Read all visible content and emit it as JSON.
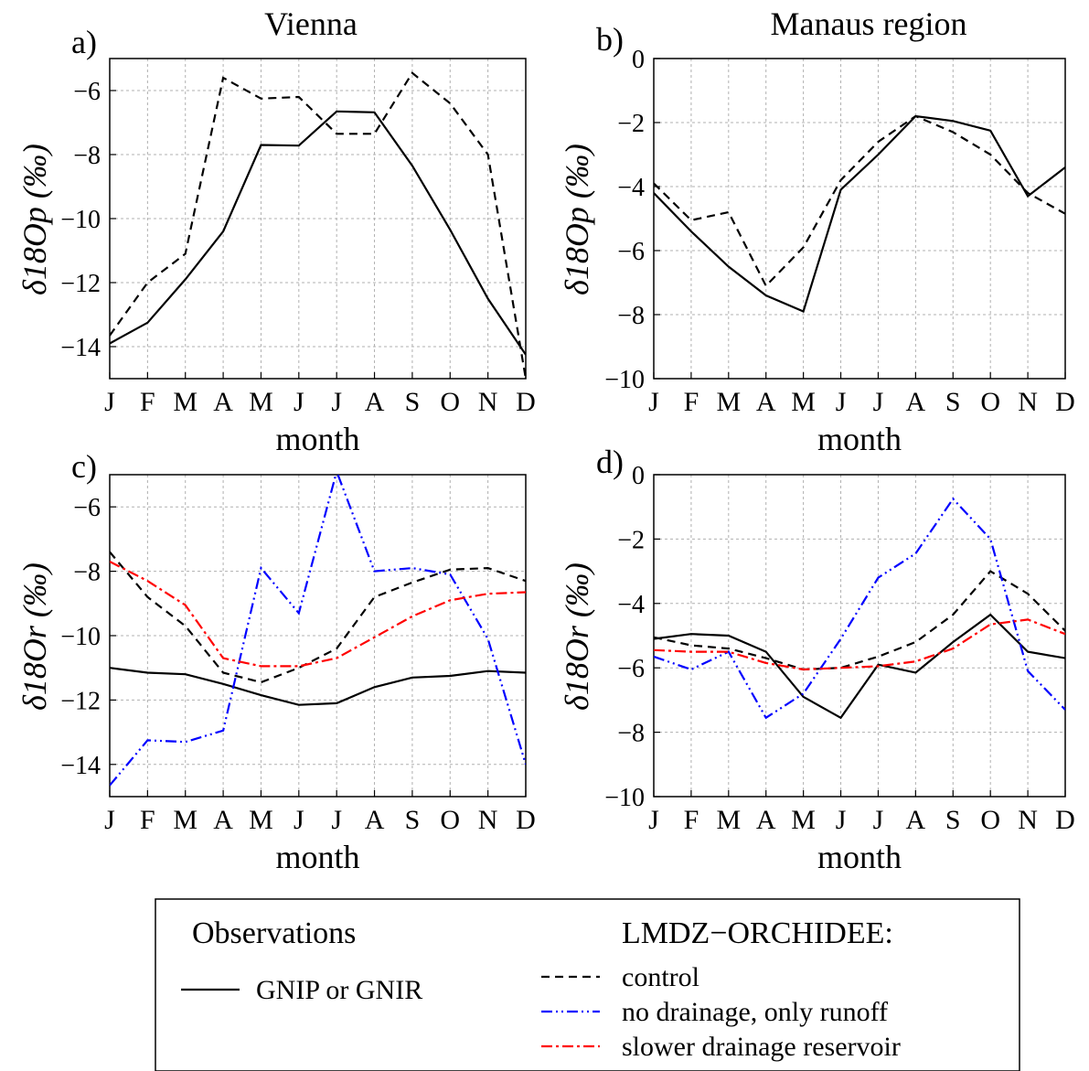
{
  "chart_data": [
    {
      "panel_label": "a)",
      "title": "Vienna",
      "type": "line",
      "xlabel": "month",
      "ylabel": "δ18Op (‰)",
      "categories": [
        "J",
        "F",
        "M",
        "A",
        "M",
        "J",
        "J",
        "A",
        "S",
        "O",
        "N",
        "D"
      ],
      "ylim": [
        -15,
        -5
      ],
      "yticks": [
        -14,
        -12,
        -10,
        -8,
        -6
      ],
      "grid": true,
      "series": [
        {
          "name": "GNIP or GNIR",
          "style": "solid",
          "color": "#000000",
          "values": [
            -13.9,
            -13.25,
            -11.9,
            -10.4,
            -7.7,
            -7.72,
            -6.65,
            -6.68,
            -8.35,
            -10.35,
            -12.5,
            -14.25
          ]
        },
        {
          "name": "control",
          "style": "dashed",
          "color": "#000000",
          "values": [
            -13.65,
            -12.0,
            -11.1,
            -5.6,
            -6.25,
            -6.2,
            -7.35,
            -7.35,
            -5.45,
            -6.4,
            -8.0,
            -15.0
          ]
        }
      ]
    },
    {
      "panel_label": "b)",
      "title": "Manaus region",
      "type": "line",
      "xlabel": "month",
      "ylabel": "δ18Op (‰)",
      "categories": [
        "J",
        "F",
        "M",
        "A",
        "M",
        "J",
        "J",
        "A",
        "S",
        "O",
        "N",
        "D"
      ],
      "ylim": [
        -10,
        0
      ],
      "yticks": [
        -10,
        -8,
        -6,
        -4,
        -2,
        0
      ],
      "grid": true,
      "series": [
        {
          "name": "GNIP or GNIR",
          "style": "solid",
          "color": "#000000",
          "values": [
            -4.2,
            -5.4,
            -6.5,
            -7.4,
            -7.9,
            -4.1,
            -3.0,
            -1.8,
            -1.95,
            -2.25,
            -4.3,
            -3.4
          ]
        },
        {
          "name": "control",
          "style": "dashed",
          "color": "#000000",
          "values": [
            -3.9,
            -5.05,
            -4.8,
            -7.1,
            -5.9,
            -3.8,
            -2.6,
            -1.8,
            -2.3,
            -3.0,
            -4.2,
            -4.85
          ]
        }
      ]
    },
    {
      "panel_label": "c)",
      "title": "",
      "type": "line",
      "xlabel": "month",
      "ylabel": "δ18Or (‰)",
      "categories": [
        "J",
        "F",
        "M",
        "A",
        "M",
        "J",
        "J",
        "A",
        "S",
        "O",
        "N",
        "D"
      ],
      "ylim": [
        -15,
        -5
      ],
      "yticks": [
        -14,
        -12,
        -10,
        -8,
        -6
      ],
      "grid": true,
      "series": [
        {
          "name": "GNIP or GNIR",
          "style": "solid",
          "color": "#000000",
          "values": [
            -11.0,
            -11.15,
            -11.2,
            -11.5,
            -11.85,
            -12.15,
            -12.1,
            -11.6,
            -11.3,
            -11.25,
            -11.1,
            -11.15
          ]
        },
        {
          "name": "control",
          "style": "dashed",
          "color": "#000000",
          "values": [
            -7.4,
            -8.8,
            -9.7,
            -11.15,
            -11.45,
            -11.0,
            -10.4,
            -8.8,
            -8.35,
            -7.95,
            -7.9,
            -8.3
          ]
        },
        {
          "name": "no drainage, only runoff",
          "style": "dashdotdot",
          "color": "#0000ff",
          "values": [
            -14.65,
            -13.25,
            -13.3,
            -12.95,
            -7.9,
            -9.3,
            -4.9,
            -8.0,
            -7.9,
            -8.1,
            -10.1,
            -14.0
          ]
        },
        {
          "name": "slower drainage reservoir",
          "style": "dashdot",
          "color": "#ff0000",
          "values": [
            -7.7,
            -8.3,
            -9.05,
            -10.7,
            -10.95,
            -10.95,
            -10.7,
            -10.05,
            -9.4,
            -8.9,
            -8.7,
            -8.65
          ]
        }
      ]
    },
    {
      "panel_label": "d)",
      "title": "",
      "type": "line",
      "xlabel": "month",
      "ylabel": "δ18Or (‰)",
      "categories": [
        "J",
        "F",
        "M",
        "A",
        "M",
        "J",
        "J",
        "A",
        "S",
        "O",
        "N",
        "D"
      ],
      "ylim": [
        -10,
        0
      ],
      "yticks": [
        -10,
        -8,
        -6,
        -4,
        -2,
        0
      ],
      "grid": true,
      "series": [
        {
          "name": "GNIP or GNIR",
          "style": "solid",
          "color": "#000000",
          "values": [
            -5.1,
            -4.95,
            -5.0,
            -5.5,
            -6.9,
            -7.55,
            -5.9,
            -6.15,
            -5.2,
            -4.35,
            -5.5,
            -5.7
          ]
        },
        {
          "name": "control",
          "style": "dashed",
          "color": "#000000",
          "values": [
            -5.05,
            -5.3,
            -5.4,
            -5.7,
            -6.05,
            -6.0,
            -5.65,
            -5.2,
            -4.35,
            -3.0,
            -3.7,
            -4.85
          ]
        },
        {
          "name": "no drainage, only runoff",
          "style": "dashdotdot",
          "color": "#0000ff",
          "values": [
            -5.65,
            -6.05,
            -5.5,
            -7.55,
            -6.8,
            -5.1,
            -3.2,
            -2.45,
            -0.75,
            -2.0,
            -6.1,
            -7.3
          ]
        },
        {
          "name": "slower drainage reservoir",
          "style": "dashdot",
          "color": "#ff0000",
          "values": [
            -5.45,
            -5.5,
            -5.5,
            -5.85,
            -6.05,
            -6.0,
            -5.95,
            -5.8,
            -5.4,
            -4.65,
            -4.5,
            -4.95
          ]
        }
      ]
    }
  ],
  "legend": {
    "observations_heading": "Observations",
    "model_heading": "LMDZ−ORCHIDEE:",
    "items": [
      {
        "label": "GNIP or GNIR",
        "style": "solid",
        "color": "#000000"
      },
      {
        "label": "control",
        "style": "dashed",
        "color": "#000000"
      },
      {
        "label": "no drainage, only runoff",
        "style": "dashdotdot",
        "color": "#0000ff"
      },
      {
        "label": "slower drainage reservoir",
        "style": "dashdot",
        "color": "#ff0000"
      }
    ]
  }
}
